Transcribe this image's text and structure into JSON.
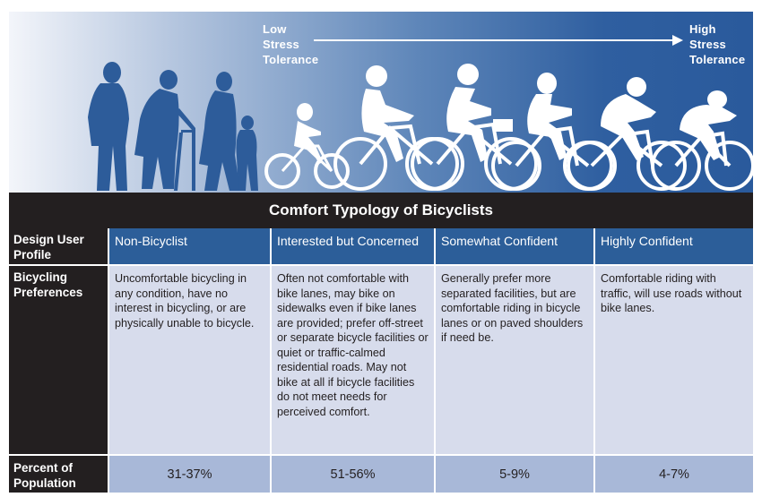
{
  "banner": {
    "low_label": "Low\nStress\nTolerance",
    "high_label": "High\nStress\nTolerance",
    "colors": {
      "silhouette_dark": "#2d5c9a",
      "silhouette_light": "#ffffff"
    }
  },
  "title": "Comfort Typology of Bicyclists",
  "table": {
    "header_label": "Design User Profile",
    "preferences_label": "Bicycling Preferences",
    "percent_label": "Percent of Population",
    "columns": [
      {
        "profile": "Non-Bicyclist",
        "preferences": "Uncomfortable bicycling in any condition, have no interest in bicycling, or are physically unable to bicycle.",
        "percent": "31-37%"
      },
      {
        "profile": "Interested but Concerned",
        "preferences": "Often not comfortable with bike lanes, may bike on sidewalks even if bike lanes are provided; prefer off-street or separate bicycle facilities or quiet or traffic-calmed residential roads. May not bike at all if bicycle facilities do not meet needs for perceived comfort.",
        "percent": "51-56%"
      },
      {
        "profile": "Somewhat Confident",
        "preferences": "Generally prefer more separated facilities, but are comfortable riding in bicycle lanes or on paved shoulders if need be.",
        "percent": "5-9%"
      },
      {
        "profile": "Highly Confident",
        "preferences": "Comfortable riding with traffic, will use roads without bike lanes.",
        "percent": "4-7%"
      }
    ]
  }
}
